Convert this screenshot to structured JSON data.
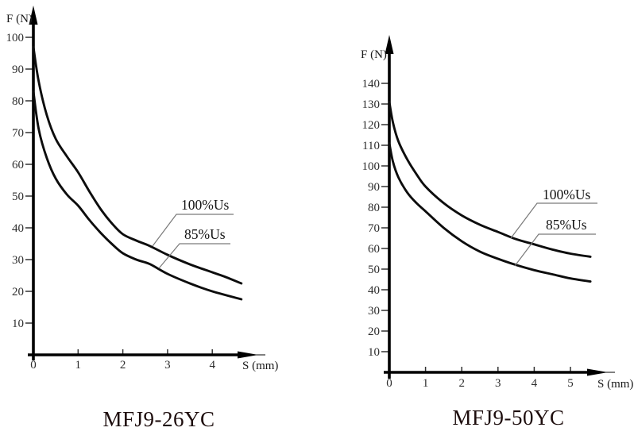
{
  "figure": {
    "background": "#ffffff",
    "description_visible_text_only": true
  },
  "colors": {
    "curve": "#0d0d0d",
    "axis": "#000000",
    "tick": "#333333",
    "tick_label": "#2e2e2e",
    "leader_line": "#7a7a7a",
    "title": "#1d0d0d"
  },
  "chart_data": [
    {
      "type": "line",
      "title": "MFJ9-26YC",
      "xlabel": "S (mm)",
      "ylabel": "F (N)",
      "xlim": [
        0,
        5
      ],
      "ylim": [
        0,
        110
      ],
      "x_ticks": [
        0,
        1,
        2,
        3,
        4
      ],
      "y_ticks": [
        10,
        20,
        30,
        40,
        50,
        60,
        70,
        80,
        90,
        100
      ],
      "grid": false,
      "legend_style": "leader-line labels on plot",
      "series": [
        {
          "name": "100%Us",
          "points": [
            [
              0,
              97
            ],
            [
              0.12,
              86
            ],
            [
              0.3,
              75.5
            ],
            [
              0.5,
              68
            ],
            [
              0.75,
              62.5
            ],
            [
              1,
              57.5
            ],
            [
              1.25,
              51.5
            ],
            [
              1.5,
              46
            ],
            [
              1.75,
              41.5
            ],
            [
              2,
              38
            ],
            [
              2.3,
              36
            ],
            [
              2.6,
              34.3
            ],
            [
              3,
              31.5
            ],
            [
              3.5,
              28.5
            ],
            [
              4,
              26
            ],
            [
              4.3,
              24.5
            ],
            [
              4.65,
              22.5
            ]
          ]
        },
        {
          "name": "85%Us",
          "points": [
            [
              0,
              83
            ],
            [
              0.12,
              71
            ],
            [
              0.3,
              62
            ],
            [
              0.5,
              55.5
            ],
            [
              0.75,
              50.5
            ],
            [
              1,
              47
            ],
            [
              1.25,
              42.5
            ],
            [
              1.5,
              38.5
            ],
            [
              1.75,
              35
            ],
            [
              2,
              32
            ],
            [
              2.3,
              30
            ],
            [
              2.6,
              28.6
            ],
            [
              3,
              25.5
            ],
            [
              3.5,
              22.5
            ],
            [
              4,
              20
            ],
            [
              4.65,
              17.5
            ]
          ]
        }
      ]
    },
    {
      "type": "line",
      "title": "MFJ9-50YC",
      "xlabel": "S (mm)",
      "ylabel": "F (N)",
      "xlim": [
        0,
        6
      ],
      "ylim": [
        0,
        150
      ],
      "x_ticks": [
        0,
        1,
        2,
        3,
        4,
        5
      ],
      "y_ticks": [
        10,
        20,
        30,
        40,
        50,
        60,
        70,
        80,
        90,
        100,
        110,
        120,
        130,
        140
      ],
      "grid": false,
      "legend_style": "leader-line labels on plot",
      "series": [
        {
          "name": "100%Us",
          "points": [
            [
              0,
              131
            ],
            [
              0.1,
              121
            ],
            [
              0.25,
              112
            ],
            [
              0.5,
              103
            ],
            [
              0.75,
              96
            ],
            [
              1,
              90
            ],
            [
              1.5,
              82
            ],
            [
              2,
              76
            ],
            [
              2.5,
              71.5
            ],
            [
              3,
              68
            ],
            [
              3.5,
              64.5
            ],
            [
              4,
              62
            ],
            [
              4.5,
              59.5
            ],
            [
              5,
              57.5
            ],
            [
              5.55,
              56
            ]
          ]
        },
        {
          "name": "85%Us",
          "points": [
            [
              0,
              111
            ],
            [
              0.1,
              102
            ],
            [
              0.25,
              94.5
            ],
            [
              0.5,
              87
            ],
            [
              0.75,
              82
            ],
            [
              1,
              78
            ],
            [
              1.5,
              70
            ],
            [
              2,
              63.5
            ],
            [
              2.5,
              58.5
            ],
            [
              3,
              55
            ],
            [
              3.5,
              52
            ],
            [
              4,
              49.5
            ],
            [
              4.5,
              47.5
            ],
            [
              5,
              45.5
            ],
            [
              5.55,
              44
            ]
          ]
        }
      ]
    }
  ]
}
